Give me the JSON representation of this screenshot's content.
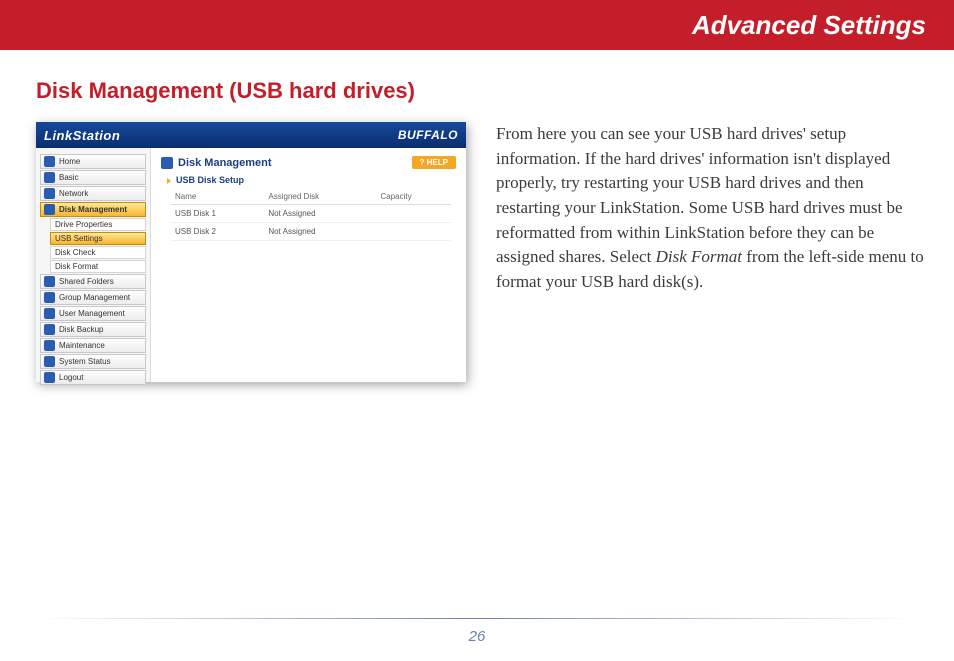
{
  "header": {
    "title": "Advanced Settings"
  },
  "section": {
    "title": "Disk Management (USB hard drives)"
  },
  "screenshot": {
    "brand_left": "LinkStation",
    "brand_right": "BUFFALO",
    "sidebar": {
      "items": [
        {
          "label": "Home",
          "selected": false
        },
        {
          "label": "Basic",
          "selected": false
        },
        {
          "label": "Network",
          "selected": false
        },
        {
          "label": "Disk Management",
          "selected": true,
          "sub": [
            {
              "label": "Drive Properties",
              "selected": false
            },
            {
              "label": "USB Settings",
              "selected": true
            },
            {
              "label": "Disk Check",
              "selected": false
            },
            {
              "label": "Disk Format",
              "selected": false
            }
          ]
        },
        {
          "label": "Shared Folders",
          "selected": false
        },
        {
          "label": "Group Management",
          "selected": false
        },
        {
          "label": "User Management",
          "selected": false
        },
        {
          "label": "Disk Backup",
          "selected": false
        },
        {
          "label": "Maintenance",
          "selected": false
        },
        {
          "label": "System Status",
          "selected": false
        },
        {
          "label": "Logout",
          "selected": false
        }
      ]
    },
    "panel": {
      "title": "Disk Management",
      "help_label": "? HELP",
      "subhead": "USB Disk Setup",
      "columns": [
        "Name",
        "Assigned Disk",
        "Capacity"
      ],
      "rows": [
        [
          "USB Disk 1",
          "Not Assigned",
          ""
        ],
        [
          "USB Disk 2",
          "Not Assigned",
          ""
        ]
      ]
    }
  },
  "body": {
    "p1a": "From here you can see your USB hard drives' setup information.  If the hard drives' information isn't displayed properly, try restarting your USB hard drives and then restarting your LinkStation.  Some USB hard drives must be reformatted from within LinkStation before they can be assigned shares.  Select ",
    "em": "Disk Format",
    "p1b": " from the left-side menu to format your USB hard disk(s)."
  },
  "page_number": "26",
  "colors": {
    "header_bg": "#c41e2a",
    "accent": "#c41e2a"
  }
}
